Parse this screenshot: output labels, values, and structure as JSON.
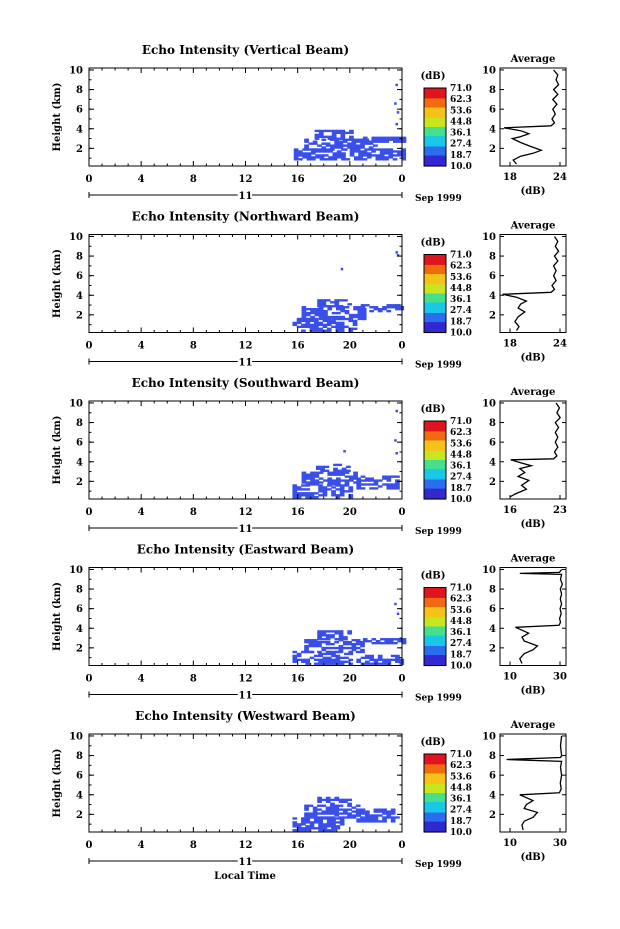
{
  "colorbar": {
    "unit": "(dB)",
    "levels": [
      "71.0",
      "62.3",
      "53.6",
      "44.8",
      "36.1",
      "27.4",
      "18.7",
      "10.0"
    ],
    "colors": [
      "#e0141e",
      "#f06a10",
      "#f5c21a",
      "#c8e61e",
      "#46e08c",
      "#18c8e6",
      "#2a6eee",
      "#3228d2"
    ]
  },
  "echo_color": "#3a4fe8",
  "month_label": "Sep 1999",
  "day_label": "11",
  "x_axis_label": "Local Time",
  "avg_title": "Average",
  "avg_xlabel": "(dB)",
  "chart_data": [
    {
      "type": "heatmap",
      "title": "Echo Intensity (Vertical Beam)",
      "ylabel": "Height (km)",
      "xlim": [
        0,
        24
      ],
      "ylim": [
        0.2,
        10.2
      ],
      "xticks": [
        "0",
        "4",
        "8",
        "12",
        "16",
        "20",
        "0"
      ],
      "yticks": [
        "2",
        "4",
        "6",
        "8",
        "10"
      ],
      "echo_patches": [
        {
          "x": [
            15.7,
            24
          ],
          "y": [
            0.8,
            1.8
          ]
        },
        {
          "x": [
            16.5,
            22
          ],
          "y": [
            1.8,
            2.9
          ]
        },
        {
          "x": [
            17.3,
            20
          ],
          "y": [
            2.9,
            3.8
          ]
        },
        {
          "x": [
            21,
            24
          ],
          "y": [
            2.6,
            3.2
          ]
        }
      ],
      "sparse": [
        [
          23.5,
          8.6
        ],
        [
          23.4,
          6.7
        ],
        [
          23.6,
          5.8
        ],
        [
          23.5,
          4.6
        ]
      ],
      "average": {
        "xticks": [
          "18",
          "24"
        ],
        "xlim": [
          16,
          24
        ],
        "profile": [
          [
            22.5,
            10
          ],
          [
            23,
            9.5
          ],
          [
            22.8,
            9
          ],
          [
            23.1,
            8.5
          ],
          [
            22.5,
            8
          ],
          [
            23,
            7.5
          ],
          [
            22.4,
            7
          ],
          [
            22.9,
            6.5
          ],
          [
            22.4,
            6
          ],
          [
            22.7,
            5.5
          ],
          [
            22.3,
            5
          ],
          [
            22.6,
            4.6
          ],
          [
            22.2,
            4.3
          ],
          [
            16.5,
            4.1
          ],
          [
            18.5,
            3.8
          ],
          [
            19.5,
            3.5
          ],
          [
            18.5,
            3.2
          ],
          [
            17.5,
            3
          ],
          [
            18.5,
            2.6
          ],
          [
            19.7,
            2.2
          ],
          [
            21,
            1.8
          ],
          [
            20,
            1.5
          ],
          [
            18.5,
            1.2
          ],
          [
            17.6,
            0.8
          ],
          [
            18,
            0.4
          ]
        ]
      }
    },
    {
      "type": "heatmap",
      "title": "Echo Intensity (Northward Beam)",
      "ylabel": "Height (km)",
      "xlim": [
        0,
        24
      ],
      "ylim": [
        0.2,
        10.2
      ],
      "xticks": [
        "0",
        "4",
        "8",
        "12",
        "16",
        "20",
        "0"
      ],
      "yticks": [
        "2",
        "4",
        "6",
        "8",
        "10"
      ],
      "echo_patches": [
        {
          "x": [
            15.6,
            20.5
          ],
          "y": [
            0.3,
            1.5
          ]
        },
        {
          "x": [
            16.3,
            21
          ],
          "y": [
            1.5,
            2.8
          ]
        },
        {
          "x": [
            17.5,
            20
          ],
          "y": [
            2.8,
            3.6
          ]
        },
        {
          "x": [
            20.5,
            24
          ],
          "y": [
            2.3,
            3.0
          ]
        }
      ],
      "sparse": [
        [
          19.3,
          6.8
        ],
        [
          23.5,
          8.5
        ],
        [
          23.6,
          8.2
        ]
      ],
      "average": {
        "xticks": [
          "18",
          "24"
        ],
        "xlim": [
          16,
          24
        ],
        "profile": [
          [
            22.6,
            10
          ],
          [
            23,
            9.5
          ],
          [
            22.7,
            9
          ],
          [
            23.1,
            8.5
          ],
          [
            22.6,
            8
          ],
          [
            23,
            7.5
          ],
          [
            22.5,
            7
          ],
          [
            22.8,
            6.5
          ],
          [
            22.5,
            6
          ],
          [
            22.8,
            5.5
          ],
          [
            22.3,
            5
          ],
          [
            22.6,
            4.6
          ],
          [
            22.2,
            4.3
          ],
          [
            16.3,
            4.1
          ],
          [
            18,
            3.8
          ],
          [
            19.2,
            3.4
          ],
          [
            18.5,
            3.1
          ],
          [
            18.2,
            2.7
          ],
          [
            19,
            2.3
          ],
          [
            18.2,
            1.8
          ],
          [
            17.8,
            1.3
          ],
          [
            18.3,
            0.8
          ],
          [
            18,
            0.4
          ]
        ]
      }
    },
    {
      "type": "heatmap",
      "title": "Echo Intensity (Southward Beam)",
      "ylabel": "Height (km)",
      "xlim": [
        0,
        24
      ],
      "ylim": [
        0.2,
        10.2
      ],
      "xticks": [
        "0",
        "4",
        "8",
        "12",
        "16",
        "20",
        "0"
      ],
      "yticks": [
        "2",
        "4",
        "6",
        "8",
        "10"
      ],
      "echo_patches": [
        {
          "x": [
            15.6,
            20
          ],
          "y": [
            0.3,
            1.6
          ]
        },
        {
          "x": [
            16.3,
            20.5
          ],
          "y": [
            1.6,
            3.0
          ]
        },
        {
          "x": [
            17.4,
            20
          ],
          "y": [
            3.0,
            3.8
          ]
        },
        {
          "x": [
            20.5,
            23.5
          ],
          "y": [
            1.2,
            2.6
          ]
        }
      ],
      "sparse": [
        [
          19.5,
          5.2
        ],
        [
          23.5,
          9.3
        ],
        [
          23.4,
          6.3
        ],
        [
          23.5,
          5.0
        ]
      ],
      "average": {
        "xticks": [
          "16",
          "23"
        ],
        "xlim": [
          15,
          23
        ],
        "profile": [
          [
            21.8,
            10
          ],
          [
            22.2,
            9.5
          ],
          [
            21.9,
            9
          ],
          [
            22.3,
            8.5
          ],
          [
            21.7,
            8
          ],
          [
            22.1,
            7.5
          ],
          [
            21.7,
            7
          ],
          [
            22,
            6.5
          ],
          [
            21.7,
            6
          ],
          [
            22,
            5.5
          ],
          [
            21.6,
            5
          ],
          [
            21.9,
            4.6
          ],
          [
            21.5,
            4.3
          ],
          [
            16.3,
            4.2
          ],
          [
            17.5,
            3.9
          ],
          [
            18.8,
            3.6
          ],
          [
            17.4,
            3.3
          ],
          [
            18,
            2.9
          ],
          [
            17.2,
            2.5
          ],
          [
            18.5,
            2.1
          ],
          [
            17.6,
            1.6
          ],
          [
            18.2,
            1.2
          ],
          [
            16.8,
            0.7
          ],
          [
            16.2,
            0.4
          ]
        ]
      }
    },
    {
      "type": "heatmap",
      "title": "Echo Intensity (Eastward Beam)",
      "ylabel": "Height (km)",
      "xlim": [
        0,
        24
      ],
      "ylim": [
        0.2,
        10.2
      ],
      "xticks": [
        "0",
        "4",
        "8",
        "12",
        "16",
        "20",
        "0"
      ],
      "yticks": [
        "2",
        "4",
        "6",
        "8",
        "10"
      ],
      "echo_patches": [
        {
          "x": [
            15.6,
            20
          ],
          "y": [
            0.3,
            1.5
          ]
        },
        {
          "x": [
            16.5,
            21
          ],
          "y": [
            1.5,
            2.8
          ]
        },
        {
          "x": [
            17.5,
            20
          ],
          "y": [
            2.8,
            3.7
          ]
        },
        {
          "x": [
            20.5,
            24
          ],
          "y": [
            0.3,
            1.2
          ]
        },
        {
          "x": [
            21,
            24
          ],
          "y": [
            2.4,
            3.0
          ]
        }
      ],
      "sparse": [
        [
          23.4,
          6.6
        ],
        [
          23.6,
          5.6
        ]
      ],
      "average": {
        "xticks": [
          "10",
          "30"
        ],
        "xlim": [
          5,
          35
        ],
        "profile": [
          [
            33,
            10
          ],
          [
            32,
            9.7
          ],
          [
            14,
            9.6
          ],
          [
            33,
            9.5
          ],
          [
            32.5,
            9
          ],
          [
            33.3,
            8.5
          ],
          [
            32.4,
            8
          ],
          [
            33,
            7.5
          ],
          [
            32.4,
            7
          ],
          [
            33,
            6.5
          ],
          [
            32.3,
            6
          ],
          [
            32.8,
            5.5
          ],
          [
            32.1,
            5
          ],
          [
            32.5,
            4.6
          ],
          [
            31.8,
            4.3
          ],
          [
            12,
            4.1
          ],
          [
            15,
            3.8
          ],
          [
            18,
            3.5
          ],
          [
            15,
            3.1
          ],
          [
            16,
            2.7
          ],
          [
            22,
            2.2
          ],
          [
            20,
            1.8
          ],
          [
            16,
            1.4
          ],
          [
            14,
            0.9
          ],
          [
            15,
            0.4
          ]
        ]
      }
    },
    {
      "type": "heatmap",
      "title": "Echo Intensity (Westward Beam)",
      "ylabel": "Height (km)",
      "xlim": [
        0,
        24
      ],
      "ylim": [
        0.2,
        10.2
      ],
      "xticks": [
        "0",
        "4",
        "8",
        "12",
        "16",
        "20",
        "0"
      ],
      "yticks": [
        "2",
        "4",
        "6",
        "8",
        "10"
      ],
      "echo_patches": [
        {
          "x": [
            15.6,
            19.5
          ],
          "y": [
            0.3,
            1.6
          ]
        },
        {
          "x": [
            16.5,
            21
          ],
          "y": [
            1.6,
            3.0
          ]
        },
        {
          "x": [
            17.5,
            20
          ],
          "y": [
            3.0,
            3.7
          ]
        },
        {
          "x": [
            20.5,
            23.5
          ],
          "y": [
            1.2,
            2.5
          ]
        }
      ],
      "sparse": [],
      "average": {
        "xticks": [
          "10",
          "30"
        ],
        "xlim": [
          5,
          35
        ],
        "profile": [
          [
            33,
            10
          ],
          [
            32.5,
            9
          ],
          [
            33,
            8
          ],
          [
            32.5,
            7.8
          ],
          [
            8,
            7.6
          ],
          [
            33,
            7.4
          ],
          [
            32.5,
            6.8
          ],
          [
            33,
            6
          ],
          [
            32.4,
            5.2
          ],
          [
            32.8,
            4.6
          ],
          [
            32,
            4.2
          ],
          [
            14,
            4.0
          ],
          [
            17,
            3.7
          ],
          [
            20,
            3.4
          ],
          [
            17,
            3.0
          ],
          [
            16,
            2.6
          ],
          [
            22,
            2.2
          ],
          [
            20,
            1.7
          ],
          [
            16,
            1.3
          ],
          [
            15,
            0.9
          ],
          [
            15.5,
            0.4
          ]
        ]
      }
    }
  ]
}
